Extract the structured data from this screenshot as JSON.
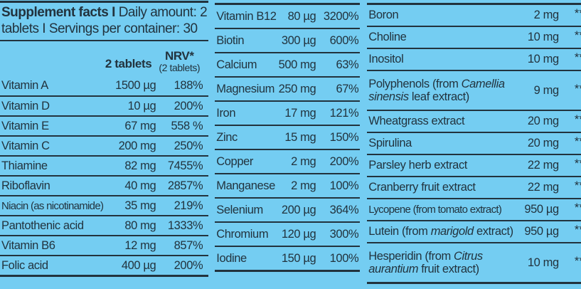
{
  "colors": {
    "background": "#74cdf2",
    "ink": "#22333e"
  },
  "panel1": {
    "title_bold": "Supplement facts I",
    "title_rest": " Daily amount: 2 tablets I Servings per container: 30",
    "amount_header": "2 tablets",
    "nrv_header": "NRV*",
    "nrv_subheader": "(2 tablets)",
    "rows": [
      {
        "name": "Vitamin A",
        "amount": "1500 µg",
        "nrv": "188%"
      },
      {
        "name": "Vitamin D",
        "amount": "10 µg",
        "nrv": "200%"
      },
      {
        "name": "Vitamin E",
        "amount": "67 mg",
        "nrv": "558 %"
      },
      {
        "name": "Vitamin C",
        "amount": "200 mg",
        "nrv": "250%"
      },
      {
        "name": "Thiamine",
        "amount": "82 mg",
        "nrv": "7455%"
      },
      {
        "name": "Riboflavin",
        "amount": "40 mg",
        "nrv": "2857%"
      },
      {
        "name": "Niacin (as nicotinamide)",
        "amount": "35 mg",
        "nrv": "219%"
      },
      {
        "name": "Pantothenic acid",
        "amount": "80 mg",
        "nrv": "1333%"
      },
      {
        "name": "Vitamin B6",
        "amount": "12 mg",
        "nrv": "857%"
      },
      {
        "name": "Folic acid",
        "amount": "400 µg",
        "nrv": "200%"
      }
    ]
  },
  "panel2": {
    "rows": [
      {
        "name": "Vitamin B12",
        "amount": "80 µg",
        "nrv": "3200%"
      },
      {
        "name": "Biotin",
        "amount": "300 µg",
        "nrv": "600%"
      },
      {
        "name": "Calcium",
        "amount": "500 mg",
        "nrv": "63%"
      },
      {
        "name": "Magnesium",
        "amount": "250 mg",
        "nrv": "67%"
      },
      {
        "name": "Iron",
        "amount": "17 mg",
        "nrv": "121%"
      },
      {
        "name": "Zinc",
        "amount": "15 mg",
        "nrv": "150%"
      },
      {
        "name": "Copper",
        "amount": "2 mg",
        "nrv": "200%"
      },
      {
        "name": "Manganese",
        "amount": "2 mg",
        "nrv": "100%"
      },
      {
        "name": "Selenium",
        "amount": "200 µg",
        "nrv": "364%"
      },
      {
        "name": "Chromium",
        "amount": "120 µg",
        "nrv": "300%"
      },
      {
        "name": "Iodine",
        "amount": "150 µg",
        "nrv": "100%"
      }
    ]
  },
  "panel3": {
    "rows": [
      {
        "name": "Boron",
        "amount": "2 mg",
        "nrv": "**"
      },
      {
        "name": "Choline",
        "amount": "10 mg",
        "nrv": "**"
      },
      {
        "name": "Inositol",
        "amount": "10 mg",
        "nrv": "**"
      },
      {
        "name_pre": "Polyphenols (from ",
        "name_italic": "Camellia sinensis",
        "name_post": " leaf extract)",
        "amount": "9 mg",
        "nrv": "**"
      },
      {
        "name": "Wheatgrass extract",
        "amount": "20 mg",
        "nrv": "**"
      },
      {
        "name": "Spirulina",
        "amount": "20 mg",
        "nrv": "**"
      },
      {
        "name": "Parsley herb extract",
        "amount": "22 mg",
        "nrv": "**"
      },
      {
        "name": "Cranberry fruit extract",
        "amount": "22 mg",
        "nrv": "**"
      },
      {
        "name": "Lycopene (from tomato extract)",
        "amount": "950 µg",
        "nrv": "**"
      },
      {
        "name_pre": "Lutein (from ",
        "name_italic": "marigold",
        "name_post": " extract)",
        "amount": "950 µg",
        "nrv": "**"
      },
      {
        "name_pre": "Hesperidin (from ",
        "name_italic": "Citrus aurantium",
        "name_post": " fruit extract)",
        "amount": "10 mg",
        "nrv": "**"
      }
    ]
  }
}
